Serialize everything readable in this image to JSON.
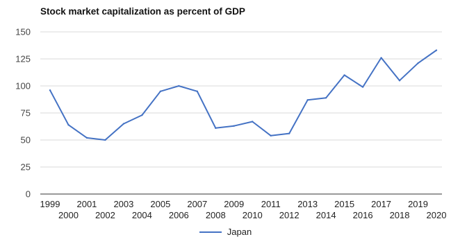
{
  "chart_data": {
    "type": "line",
    "title": "Stock market capitalization as percent of GDP",
    "xlabel": "",
    "ylabel": "",
    "x": [
      "1999",
      "2000",
      "2001",
      "2002",
      "2003",
      "2004",
      "2005",
      "2006",
      "2007",
      "2008",
      "2009",
      "2010",
      "2011",
      "2012",
      "2013",
      "2014",
      "2015",
      "2016",
      "2017",
      "2018",
      "2019",
      "2020"
    ],
    "series": [
      {
        "name": "Japan",
        "color": "#4472c4",
        "values": [
          96,
          64,
          52,
          50,
          65,
          73,
          95,
          100,
          95,
          61,
          63,
          67,
          54,
          56,
          87,
          89,
          110,
          99,
          126,
          105,
          121,
          133
        ]
      }
    ],
    "ylim": [
      0,
      150
    ],
    "yticks": [
      0,
      25,
      50,
      75,
      100,
      125,
      150
    ],
    "grid": true,
    "legend_position": "bottom"
  }
}
